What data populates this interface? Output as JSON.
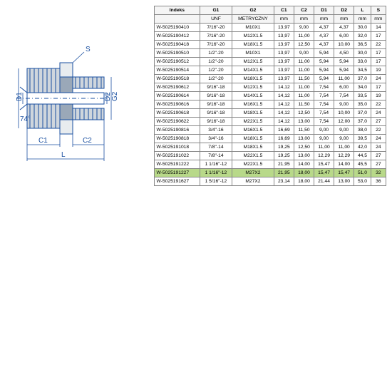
{
  "table": {
    "headers1": [
      "Indeks",
      "G1",
      "G2",
      "C1",
      "C2",
      "D1",
      "D2",
      "L",
      "S"
    ],
    "headers2": [
      "",
      "UNF",
      "METRYCZNY",
      "mm",
      "mm",
      "mm",
      "mm",
      "mm",
      "mm"
    ],
    "highlight_index": 20,
    "rows": [
      [
        "W-5025190410",
        "7/16\"-20",
        "M10X1",
        "13,97",
        "9,00",
        "4,37",
        "4,37",
        "30,0",
        "14"
      ],
      [
        "W-5025190412",
        "7/16\"-20",
        "M12X1.5",
        "13,97",
        "11,00",
        "4,37",
        "6,00",
        "32,0",
        "17"
      ],
      [
        "W-5025190418",
        "7/16\"-20",
        "M18X1.5",
        "13,97",
        "12,50",
        "4,37",
        "10,00",
        "36,5",
        "22"
      ],
      [
        "W-5025190510",
        "1/2\"-20",
        "M10X1",
        "13,97",
        "9,00",
        "5,94",
        "4,50",
        "30,0",
        "17"
      ],
      [
        "W-5025190512",
        "1/2\"-20",
        "M12X1.5",
        "13,97",
        "11,00",
        "5,94",
        "5,94",
        "33,0",
        "17"
      ],
      [
        "W-5025190514",
        "1/2\"-20",
        "M14X1.5",
        "13,97",
        "11,00",
        "5,94",
        "5,94",
        "34,5",
        "19"
      ],
      [
        "W-5025190518",
        "1/2\"-20",
        "M18X1.5",
        "13,97",
        "11,50",
        "5,94",
        "11,00",
        "37,0",
        "24"
      ],
      [
        "W-5025190612",
        "9/16\"-18",
        "M12X1.5",
        "14,12",
        "11,00",
        "7,54",
        "6,00",
        "34,0",
        "17"
      ],
      [
        "W-5025190614",
        "9/16\"-18",
        "M14X1.5",
        "14,12",
        "11,00",
        "7,54",
        "7,54",
        "33,5",
        "19"
      ],
      [
        "W-5025190616",
        "9/16\"-18",
        "M16X1.5",
        "14,12",
        "11,50",
        "7,54",
        "9,00",
        "35,0",
        "22"
      ],
      [
        "W-5025190618",
        "9/16\"-18",
        "M18X1.5",
        "14,12",
        "12,50",
        "7,54",
        "10,00",
        "37,0",
        "24"
      ],
      [
        "W-5025190622",
        "9/16\"-18",
        "M22X1.5",
        "14,12",
        "13,00",
        "7,54",
        "12,00",
        "37,0",
        "27"
      ],
      [
        "W-5025190816",
        "3/4\"-16",
        "M16X1.5",
        "16,69",
        "11,50",
        "9,00",
        "9,00",
        "38,0",
        "22"
      ],
      [
        "W-5025190818",
        "3/4\"-16",
        "M18X1.5",
        "16,69",
        "13,00",
        "9,00",
        "9,00",
        "39,5",
        "24"
      ],
      [
        "W-5025191018",
        "7/8\"-14",
        "M18X1.5",
        "19,25",
        "12,50",
        "11,00",
        "11,00",
        "42,0",
        "24"
      ],
      [
        "W-5025191022",
        "7/8\"-14",
        "M22X1.5",
        "19,25",
        "13,00",
        "12,29",
        "12,29",
        "44,5",
        "27"
      ],
      [
        "W-5025191222",
        "1 1/16\"-12",
        "M22X1.5",
        "21,95",
        "14,00",
        "15,47",
        "14,00",
        "45,5",
        "27"
      ],
      [
        "W-5025191227",
        "1 1/16\"-12",
        "M27X2",
        "21,95",
        "18,00",
        "15,47",
        "15,47",
        "51,0",
        "32"
      ],
      [
        "W-5025191627",
        "1 5/16\"-12",
        "M27X2",
        "23,14",
        "18,00",
        "21,44",
        "13,00",
        "53,0",
        "36"
      ]
    ]
  },
  "diagram": {
    "labels": {
      "G1": "G1",
      "D1": "D1",
      "G2": "G2",
      "D2": "D2",
      "S": "S",
      "C1": "C1",
      "C2": "C2",
      "L": "L",
      "angle": "74°"
    },
    "colors": {
      "outline": "#1a4fa0",
      "section": "#9aa8b8",
      "section_dark": "#5a6878",
      "dim": "#1a4fa0"
    }
  }
}
